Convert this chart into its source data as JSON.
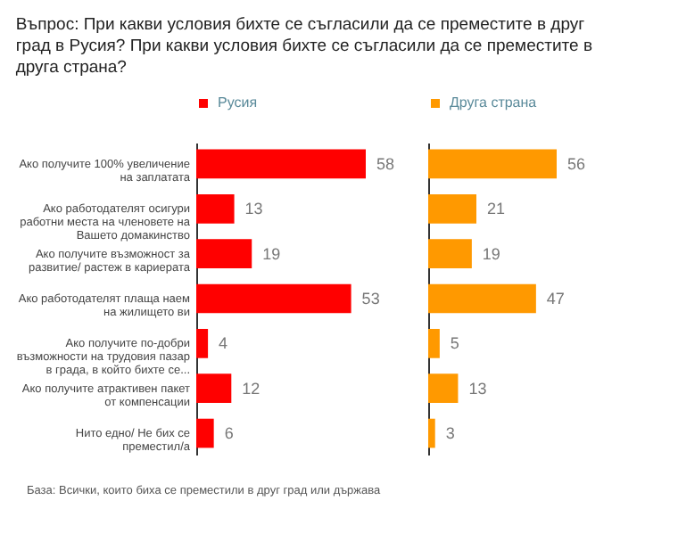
{
  "chart_data": [
    {
      "type": "bar",
      "orientation": "horizontal",
      "title": "Въпрос: При какви условия бихте се съгласили да се преместите в друг град в Русия? При какви условия бихте се съгласили да се преместите в друга страна?",
      "categories": [
        "Ако получите 100% увеличение на заплатата",
        "Ако работодателят осигури работни места на членовете на Вашето домакинство",
        "Ако получите възможност за развитие/ растеж в кариерата",
        "Ако работодателят плаща наем на жилището ви",
        "Ако получите по-добри възможности на трудовия пазар в града, в който бихте се...",
        "Ако получите атрактивен пакет от компенсации",
        "Нито едно/ Не бих се преместил/а"
      ],
      "series": [
        {
          "name": "Русия",
          "color": "#ff0000",
          "values": [
            58,
            13,
            19,
            53,
            4,
            12,
            6
          ]
        }
      ],
      "data_labels": true,
      "legend": "top",
      "tick_labels": "y",
      "annotations": [
        "База: Всички, които биха се преместили в друг град или държава"
      ]
    },
    {
      "type": "bar",
      "orientation": "horizontal",
      "categories": [
        null,
        null,
        null,
        null,
        null,
        null,
        null
      ],
      "series": [
        {
          "name": "Друга страна",
          "color": "#ff9900",
          "values": [
            56,
            21,
            19,
            47,
            5,
            13,
            3
          ]
        }
      ],
      "data_labels": true,
      "legend": "top",
      "tick_labels": false
    }
  ]
}
